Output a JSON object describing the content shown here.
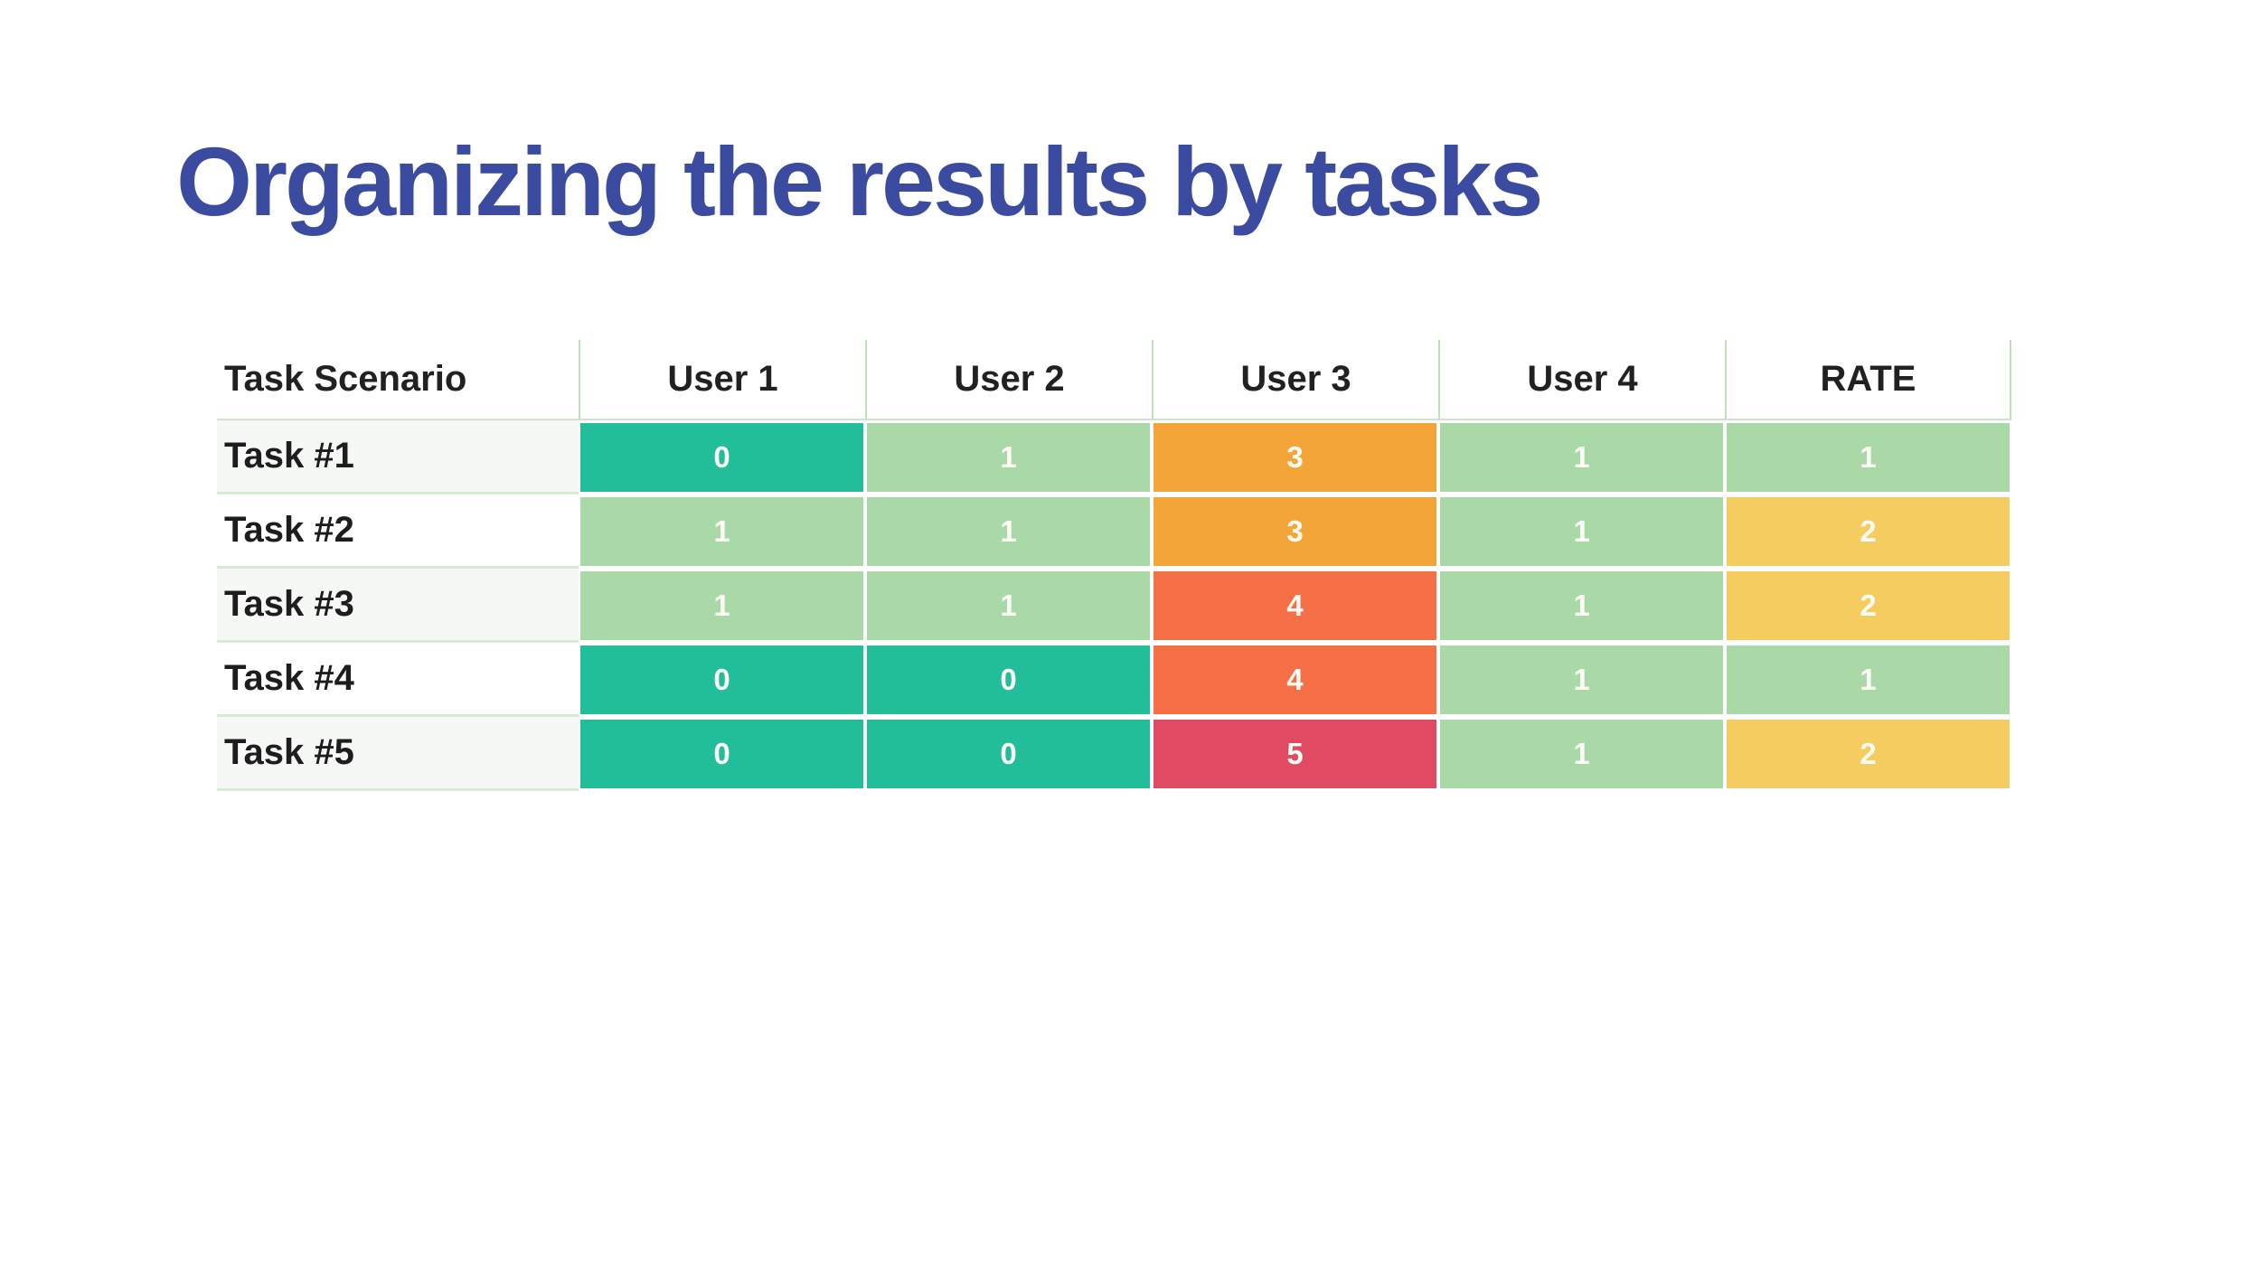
{
  "title": "Organizing the results by tasks",
  "colors": {
    "title_blue": "#3B4CA0",
    "header_text": "#212121",
    "grid_green": "#BFE0BB",
    "score0": "#22BE9A",
    "score1": "#A9D9A6",
    "score2": "#F5CC5F",
    "score3": "#F3A637",
    "score4": "#F57046",
    "score5": "#E04A62"
  },
  "table": {
    "columns": [
      "Task Scenario",
      "User 1",
      "User 2",
      "User 3",
      "User 4",
      "RATE"
    ],
    "rows": [
      {
        "label": "Task #1",
        "cells": [
          {
            "value": "0",
            "color": "score0"
          },
          {
            "value": "1",
            "color": "score1"
          },
          {
            "value": "3",
            "color": "score3"
          },
          {
            "value": "1",
            "color": "score1"
          },
          {
            "value": "1",
            "color": "score1"
          }
        ]
      },
      {
        "label": "Task #2",
        "cells": [
          {
            "value": "1",
            "color": "score1"
          },
          {
            "value": "1",
            "color": "score1"
          },
          {
            "value": "3",
            "color": "score3"
          },
          {
            "value": "1",
            "color": "score1"
          },
          {
            "value": "2",
            "color": "score2"
          }
        ]
      },
      {
        "label": "Task #3",
        "cells": [
          {
            "value": "1",
            "color": "score1"
          },
          {
            "value": "1",
            "color": "score1"
          },
          {
            "value": "4",
            "color": "score4"
          },
          {
            "value": "1",
            "color": "score1"
          },
          {
            "value": "2",
            "color": "score2"
          }
        ]
      },
      {
        "label": "Task #4",
        "cells": [
          {
            "value": "0",
            "color": "score0"
          },
          {
            "value": "0",
            "color": "score0"
          },
          {
            "value": "4",
            "color": "score4"
          },
          {
            "value": "1",
            "color": "score1"
          },
          {
            "value": "1",
            "color": "score1"
          }
        ]
      },
      {
        "label": "Task #5",
        "cells": [
          {
            "value": "0",
            "color": "score0"
          },
          {
            "value": "0",
            "color": "score0"
          },
          {
            "value": "5",
            "color": "score5"
          },
          {
            "value": "1",
            "color": "score1"
          },
          {
            "value": "2",
            "color": "score2"
          }
        ]
      }
    ]
  }
}
